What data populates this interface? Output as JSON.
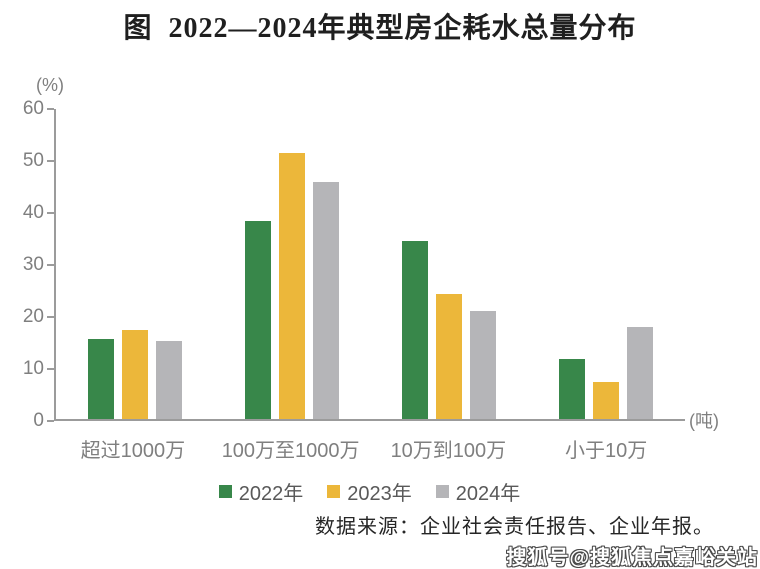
{
  "title": "图  2022—2024年典型房企耗水总量分布",
  "chart_data": {
    "type": "bar",
    "categories": [
      "超过1000万",
      "100万至1000万",
      "10万到100万",
      "小于10万"
    ],
    "series": [
      {
        "name": "2022年",
        "color": "#38874a",
        "values": [
          15.5,
          38.4,
          34.5,
          11.7
        ]
      },
      {
        "name": "2023年",
        "color": "#ecb73a",
        "values": [
          17.2,
          51.5,
          24.1,
          7.1
        ]
      },
      {
        "name": "2024年",
        "color": "#b5b5b8",
        "values": [
          15.1,
          45.8,
          21.0,
          17.9
        ]
      }
    ],
    "ylabel": "(%)",
    "xlabel": "",
    "x_unit_label": "(吨)",
    "ylim": [
      0,
      60
    ],
    "yticks": [
      0,
      10,
      20,
      30,
      40,
      50,
      60
    ],
    "grid": false,
    "legend_position": "bottom"
  },
  "source_note": "数据来源：企业社会责任报告、企业年报。",
  "watermark": "搜狐号@搜狐焦点嘉峪关站",
  "colors": {
    "axis": "#9b9b9b",
    "tick_label": "#7f7f7f",
    "title": "#1f1f1f",
    "background": "#ffffff"
  }
}
